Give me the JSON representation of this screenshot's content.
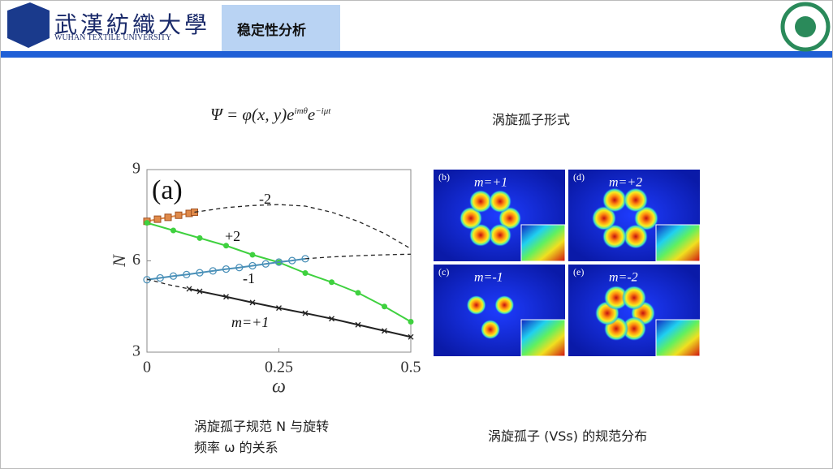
{
  "header": {
    "university_cn": "武漢紡織大學",
    "university_en": "WUHAN TEXTILE UNIVERSITY",
    "tab": "稳定性分析"
  },
  "formula": {
    "lhs": "Ψ = φ(x, y)e",
    "exp1": "imθ",
    "mid": "e",
    "exp2": "−iμt"
  },
  "formula_caption": "涡旋孤子形式",
  "chart_data": {
    "type": "line",
    "xlabel": "ω",
    "ylabel": "N",
    "xlim": [
      0,
      0.5
    ],
    "ylim": [
      3,
      9
    ],
    "xticks": [
      0,
      0.25,
      0.5
    ],
    "yticks": [
      3,
      6,
      9
    ],
    "annotations": [
      "(a)",
      "-2",
      "+2",
      "-1",
      "m=+1"
    ],
    "series": [
      {
        "color": "#e08a4a",
        "marker": "square",
        "dashed": false,
        "x": [
          0,
          0.02,
          0.04,
          0.06,
          0.08,
          0.09
        ],
        "values": [
          7.3,
          7.37,
          7.43,
          7.5,
          7.56,
          7.6
        ]
      },
      {
        "color": "#222222",
        "marker": "none",
        "dashed": true,
        "x": [
          0.09,
          0.15,
          0.2,
          0.25,
          0.3,
          0.35,
          0.4,
          0.45,
          0.5
        ],
        "values": [
          7.6,
          7.75,
          7.82,
          7.85,
          7.8,
          7.6,
          7.3,
          6.9,
          6.4
        ]
      },
      {
        "color": "#3fd13f",
        "marker": "dot",
        "dashed": false,
        "x": [
          0,
          0.05,
          0.1,
          0.15,
          0.2,
          0.25,
          0.3,
          0.35,
          0.4,
          0.45,
          0.5
        ],
        "values": [
          7.25,
          7.0,
          6.75,
          6.5,
          6.2,
          5.95,
          5.6,
          5.3,
          4.95,
          4.5,
          4.0
        ]
      },
      {
        "color": "#4a90b8",
        "marker": "circle",
        "dashed": false,
        "x": [
          0,
          0.025,
          0.05,
          0.075,
          0.1,
          0.125,
          0.15,
          0.175,
          0.2,
          0.225,
          0.25,
          0.275,
          0.3
        ],
        "values": [
          5.38,
          5.44,
          5.5,
          5.55,
          5.61,
          5.67,
          5.73,
          5.78,
          5.84,
          5.9,
          5.96,
          6.01,
          6.07
        ]
      },
      {
        "color": "#222222",
        "marker": "none",
        "dashed": true,
        "x": [
          0.3,
          0.35,
          0.4,
          0.45,
          0.5
        ],
        "values": [
          6.07,
          6.13,
          6.17,
          6.2,
          6.22
        ]
      },
      {
        "color": "#222222",
        "marker": "none",
        "dashed": true,
        "x": [
          0,
          0.04,
          0.08
        ],
        "values": [
          5.4,
          5.22,
          5.08
        ]
      },
      {
        "color": "#222222",
        "marker": "x",
        "dashed": false,
        "x": [
          0.08,
          0.1,
          0.15,
          0.2,
          0.25,
          0.3,
          0.35,
          0.4,
          0.45,
          0.5
        ],
        "values": [
          5.08,
          5.0,
          4.82,
          4.63,
          4.45,
          4.28,
          4.1,
          3.9,
          3.7,
          3.5
        ]
      }
    ]
  },
  "panels": [
    {
      "tag": "(b)",
      "m": "m=+1"
    },
    {
      "tag": "(d)",
      "m": "m=+2"
    },
    {
      "tag": "(c)",
      "m": "m=-1"
    },
    {
      "tag": "(e)",
      "m": "m=-2"
    }
  ],
  "caption_left": [
    "涡旋孤子规范 N 与旋转",
    "频率 ω 的关系"
  ],
  "caption_right": "涡旋孤子 (VSs) 的规范分布"
}
